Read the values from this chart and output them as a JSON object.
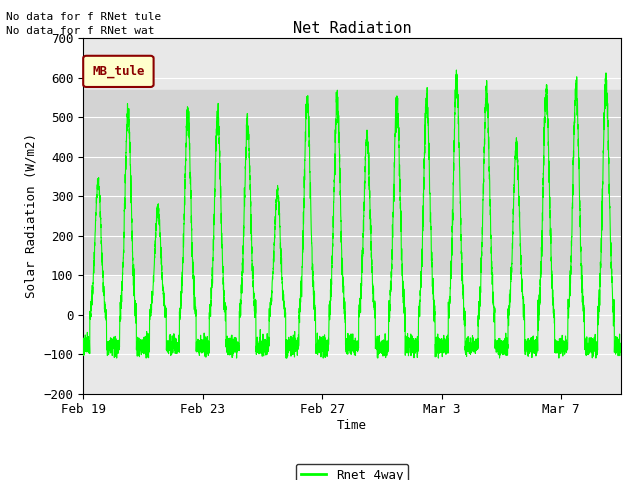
{
  "title": "Net Radiation",
  "ylabel": "Solar Radiation (W/m2)",
  "xlabel": "Time",
  "ylim": [
    -200,
    700
  ],
  "yticks": [
    -200,
    -100,
    0,
    100,
    200,
    300,
    400,
    500,
    600,
    700
  ],
  "xtick_labels": [
    "Feb 19",
    "Feb 23",
    "Feb 27",
    "Mar 3",
    "Mar 7"
  ],
  "xtick_positions": [
    0,
    4,
    8,
    12,
    16
  ],
  "xlim": [
    0,
    18
  ],
  "line_color": "#00FF00",
  "line_label": "Rnet_4way",
  "legend_label": "MB_tule",
  "no_data_text1": "No data for f RNet tule",
  "no_data_text2": "No data for f RNet wat",
  "plot_bg_color": "#E8E8E8",
  "fig_bg_color": "#FFFFFF",
  "shaded_ymin": 100,
  "shaded_ymax": 570,
  "shaded_color": "#D3D3D3",
  "grid_color": "#FFFFFF",
  "legend_facecolor": "#FFFFCC",
  "legend_edgecolor": "#8B0000",
  "legend_textcolor": "#8B0000",
  "font_family": "monospace",
  "num_days": 18,
  "day_peaks": [
    340,
    515,
    270,
    510,
    505,
    480,
    310,
    540,
    540,
    450,
    545,
    540,
    600,
    560,
    430,
    565,
    580,
    590
  ],
  "night_val": -80,
  "pts_per_day": 288,
  "title_fontsize": 11,
  "axis_fontsize": 9,
  "tick_fontsize": 9
}
